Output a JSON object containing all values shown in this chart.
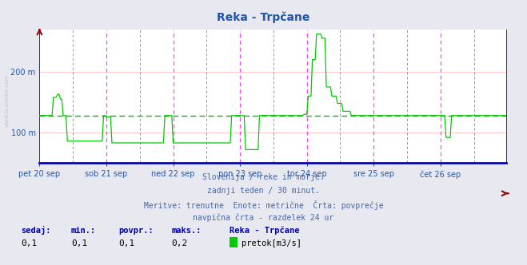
{
  "title": "Reka - Trpčane",
  "title_color": "#2255aa",
  "bg_color": "#e8e8f0",
  "plot_bg_color": "#ffffff",
  "grid_h_color": "#ffcccc",
  "grid_v_day_color": "#ff44ff",
  "grid_v_mid_color": "#888888",
  "line_color": "#00cc00",
  "avg_line_color": "#00bb00",
  "x_axis_color": "#0000dd",
  "tick_color": "#2255aa",
  "ymin": 50,
  "ymax": 270,
  "yticks": [
    100,
    200
  ],
  "ytick_labels": [
    "100 m",
    "200 m"
  ],
  "xlabels": [
    "pet 20 sep",
    "sob 21 sep",
    "ned 22 sep",
    "pon 23 sep",
    "tor 24 sep",
    "sre 25 sep",
    "čet 26 sep"
  ],
  "avg_value": 128,
  "subtitle1": "Slovenija / reke in morje.",
  "subtitle2": "zadnji teden / 30 minut.",
  "subtitle3": "Meritve: trenutne  Enote: metrične  Črta: povprečje",
  "subtitle4": "navpična črta - razdelek 24 ur",
  "subtitle_color": "#4466aa",
  "legend_labels": [
    "sedaj:",
    "min.:",
    "povpr.:",
    "maks.:"
  ],
  "legend_values": [
    "0,1",
    "0,1",
    "0,1",
    "0,2"
  ],
  "legend_name": "Reka - Trpčane",
  "legend_series": "pretok[m3/s]",
  "legend_color": "#0000aa",
  "legend_value_color": "#000000",
  "watermark": "www.si-vreme.com"
}
